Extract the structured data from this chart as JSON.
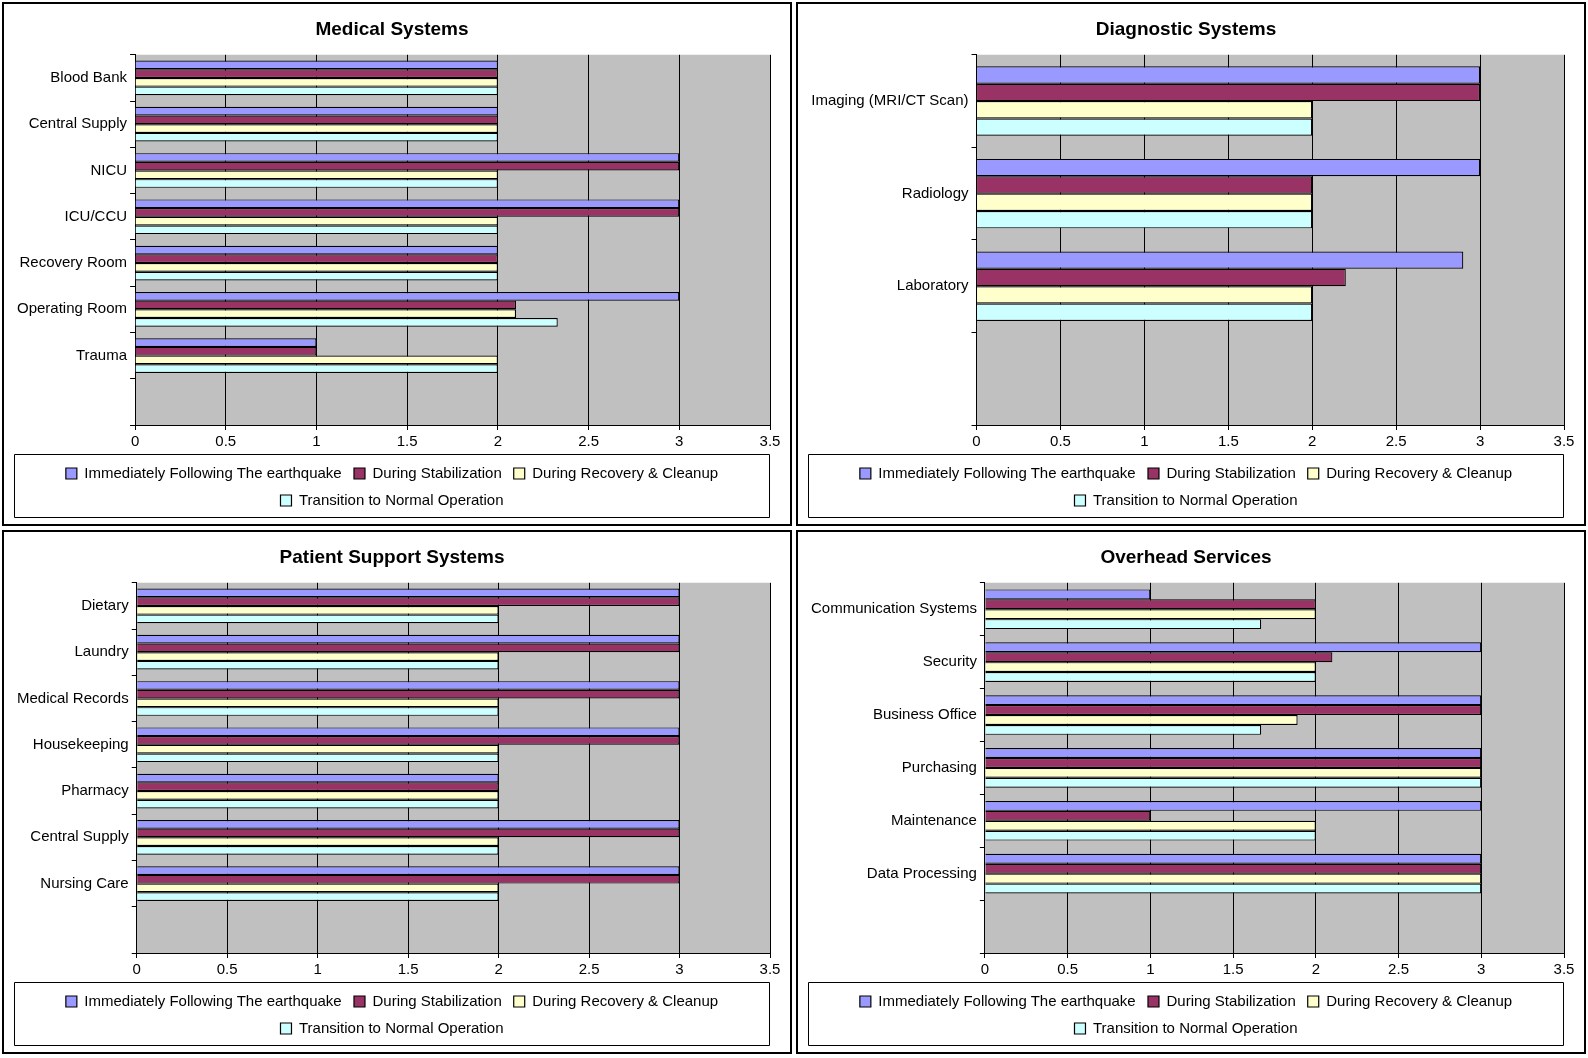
{
  "chart_data": [
    {
      "type": "bar",
      "orientation": "horizontal",
      "title": "Medical Systems",
      "categories": [
        "Blood Bank",
        "Central Supply",
        "NICU",
        "ICU/CCU",
        "Recovery Room",
        "Operating Room",
        "Trauma",
        null
      ],
      "series": [
        {
          "name": "Immediately Following The earthquake",
          "color": "#9999ff",
          "values": [
            2,
            2,
            3,
            3,
            2,
            3,
            1,
            null
          ]
        },
        {
          "name": "During Stabilization",
          "color": "#993366",
          "values": [
            2,
            2,
            3,
            3,
            2,
            2.1,
            1,
            null
          ]
        },
        {
          "name": "During Recovery & Cleanup",
          "color": "#ffffcc",
          "values": [
            2,
            2,
            2,
            2,
            2,
            2.1,
            2,
            null
          ]
        },
        {
          "name": "Transition to Normal Operation",
          "color": "#ccffff",
          "values": [
            2,
            2,
            2,
            2,
            2,
            2.33,
            2,
            null
          ]
        }
      ],
      "xlim": [
        0,
        3.5
      ],
      "xticks": [
        0,
        0.5,
        1,
        1.5,
        2,
        2.5,
        3,
        3.5
      ],
      "grid": "x",
      "legend": "bottom"
    },
    {
      "type": "bar",
      "orientation": "horizontal",
      "title": "Diagnostic Systems",
      "categories": [
        "Imaging (MRI/CT Scan)",
        "Radiology",
        "Laboratory",
        null
      ],
      "series": [
        {
          "name": "Immediately Following The earthquake",
          "color": "#9999ff",
          "values": [
            3,
            3,
            2.9,
            null
          ]
        },
        {
          "name": "During Stabilization",
          "color": "#993366",
          "values": [
            3,
            2,
            2.2,
            null
          ]
        },
        {
          "name": "During Recovery & Cleanup",
          "color": "#ffffcc",
          "values": [
            2,
            2,
            2,
            null
          ]
        },
        {
          "name": "Transition to Normal Operation",
          "color": "#ccffff",
          "values": [
            2,
            2,
            2,
            null
          ]
        }
      ],
      "xlim": [
        0,
        3.5
      ],
      "xticks": [
        0,
        0.5,
        1,
        1.5,
        2,
        2.5,
        3,
        3.5
      ],
      "grid": "x",
      "legend": "bottom"
    },
    {
      "type": "bar",
      "orientation": "horizontal",
      "title": "Patient Support Systems",
      "categories": [
        "Dietary",
        "Laundry",
        "Medical Records",
        "Housekeeping",
        "Pharmacy",
        "Central Supply",
        "Nursing Care",
        null
      ],
      "series": [
        {
          "name": "Immediately Following The earthquake",
          "color": "#9999ff",
          "values": [
            3,
            3,
            3,
            3,
            2,
            3,
            3,
            null
          ]
        },
        {
          "name": "During Stabilization",
          "color": "#993366",
          "values": [
            3,
            3,
            3,
            3,
            2,
            3,
            3,
            null
          ]
        },
        {
          "name": "During Recovery & Cleanup",
          "color": "#ffffcc",
          "values": [
            2,
            2,
            2,
            2,
            2,
            2,
            2,
            null
          ]
        },
        {
          "name": "Transition to Normal Operation",
          "color": "#ccffff",
          "values": [
            2,
            2,
            2,
            2,
            2,
            2,
            2,
            null
          ]
        }
      ],
      "xlim": [
        0,
        3.5
      ],
      "xticks": [
        0,
        0.5,
        1,
        1.5,
        2,
        2.5,
        3,
        3.5
      ],
      "grid": "x",
      "legend": "bottom"
    },
    {
      "type": "bar",
      "orientation": "horizontal",
      "title": "Overhead Services",
      "categories": [
        "Communication Systems",
        "Security",
        "Business Office",
        "Purchasing",
        "Maintenance",
        "Data Processing",
        null
      ],
      "series": [
        {
          "name": "Immediately Following The earthquake",
          "color": "#9999ff",
          "values": [
            1,
            3,
            3,
            3,
            3,
            3,
            null
          ]
        },
        {
          "name": "During Stabilization",
          "color": "#993366",
          "values": [
            2,
            2.1,
            3,
            3,
            1,
            3,
            null
          ]
        },
        {
          "name": "During Recovery & Cleanup",
          "color": "#ffffcc",
          "values": [
            2,
            2,
            1.89,
            3,
            2,
            3,
            null
          ]
        },
        {
          "name": "Transition to Normal Operation",
          "color": "#ccffff",
          "values": [
            1.67,
            2,
            1.67,
            3,
            2,
            3,
            null
          ]
        }
      ],
      "xlim": [
        0,
        3.5
      ],
      "xticks": [
        0,
        0.5,
        1,
        1.5,
        2,
        2.5,
        3,
        3.5
      ],
      "grid": "x",
      "legend": "bottom"
    }
  ]
}
